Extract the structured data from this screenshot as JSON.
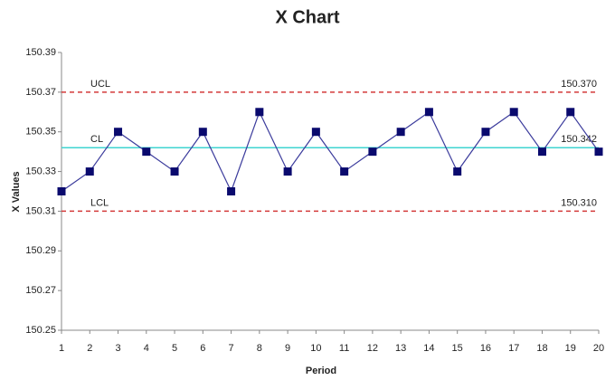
{
  "chart_data": {
    "type": "line",
    "title": "X Chart",
    "xlabel": "Period",
    "ylabel": "X Values",
    "x": [
      1,
      2,
      3,
      4,
      5,
      6,
      7,
      8,
      9,
      10,
      11,
      12,
      13,
      14,
      15,
      16,
      17,
      18,
      19,
      20
    ],
    "series": [
      {
        "name": "X",
        "color": "#3b3b9c",
        "marker_color": "#0a0a6e",
        "values": [
          150.32,
          150.33,
          150.35,
          150.34,
          150.33,
          150.35,
          150.32,
          150.36,
          150.33,
          150.35,
          150.33,
          150.34,
          150.35,
          150.36,
          150.33,
          150.35,
          150.36,
          150.34,
          150.36,
          150.34
        ]
      }
    ],
    "control_lines": [
      {
        "name": "UCL",
        "value": 150.37,
        "value_label": "150.370",
        "color": "#d43a3a",
        "dashed": true
      },
      {
        "name": "CL",
        "value": 150.342,
        "value_label": "150.342",
        "color": "#3fd4d0",
        "dashed": false
      },
      {
        "name": "LCL",
        "value": 150.31,
        "value_label": "150.310",
        "color": "#d43a3a",
        "dashed": true
      }
    ],
    "xlim": [
      1,
      20
    ],
    "xticks": [
      1,
      2,
      3,
      4,
      5,
      6,
      7,
      8,
      9,
      10,
      11,
      12,
      13,
      14,
      15,
      16,
      17,
      18,
      19,
      20
    ],
    "ylim": [
      150.25,
      150.39
    ],
    "yticks": [
      150.25,
      150.27,
      150.29,
      150.31,
      150.33,
      150.35,
      150.37,
      150.39
    ],
    "grid": false
  }
}
